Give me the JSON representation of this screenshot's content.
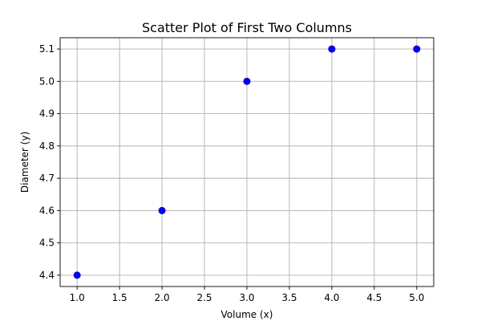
{
  "chart_data": {
    "type": "scatter",
    "title": "Scatter Plot of First Two Columns",
    "xlabel": "Volume (x)",
    "ylabel": "Diameter (y)",
    "xlim": [
      0.8,
      5.2
    ],
    "ylim": [
      4.365,
      5.135
    ],
    "xticks": [
      1.0,
      1.5,
      2.0,
      2.5,
      3.0,
      3.5,
      4.0,
      4.5,
      5.0
    ],
    "xtick_labels": [
      "1.0",
      "1.5",
      "2.0",
      "2.5",
      "3.0",
      "3.5",
      "4.0",
      "4.5",
      "5.0"
    ],
    "yticks": [
      4.4,
      4.5,
      4.6,
      4.7,
      4.8,
      4.9,
      5.0,
      5.1
    ],
    "ytick_labels": [
      "4.4",
      "4.5",
      "4.6",
      "4.7",
      "4.8",
      "4.9",
      "5.0",
      "5.1"
    ],
    "grid": true,
    "marker_color": "#0000ff",
    "points": [
      {
        "x": 1,
        "y": 4.4
      },
      {
        "x": 2,
        "y": 4.6
      },
      {
        "x": 3,
        "y": 5.0
      },
      {
        "x": 4,
        "y": 5.1
      },
      {
        "x": 5,
        "y": 5.1
      }
    ]
  }
}
